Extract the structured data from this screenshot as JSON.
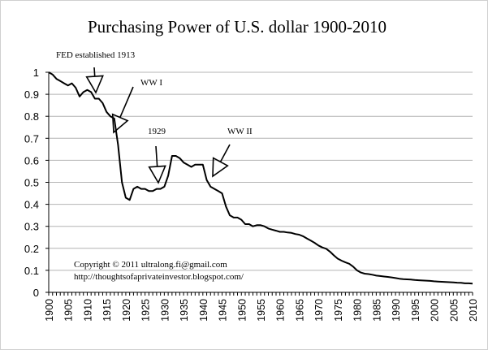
{
  "chart_data": {
    "type": "line",
    "title": "Purchasing Power of U.S. dollar 1900-2010",
    "xlabel": "",
    "ylabel": "",
    "xlim": [
      1900,
      2010
    ],
    "ylim": [
      0,
      1
    ],
    "grid": true,
    "yticks": [
      "0",
      "0.1",
      "0.2",
      "0.3",
      "0.4",
      "0.5",
      "0.6",
      "0.7",
      "0.8",
      "0.9",
      "1"
    ],
    "xticks": [
      "1900",
      "1905",
      "1910",
      "1915",
      "1920",
      "1925",
      "1930",
      "1935",
      "1940",
      "1945",
      "1950",
      "1955",
      "1960",
      "1965",
      "1970",
      "1975",
      "1980",
      "1985",
      "1990",
      "1995",
      "2000",
      "2005",
      "2010"
    ],
    "series": [
      {
        "name": "Purchasing Power of U.S. dollar",
        "x": [
          1900,
          1901,
          1902,
          1903,
          1904,
          1905,
          1906,
          1907,
          1908,
          1909,
          1910,
          1911,
          1912,
          1913,
          1914,
          1915,
          1916,
          1917,
          1918,
          1919,
          1920,
          1921,
          1922,
          1923,
          1924,
          1925,
          1926,
          1927,
          1928,
          1929,
          1930,
          1931,
          1932,
          1933,
          1934,
          1935,
          1936,
          1937,
          1938,
          1939,
          1940,
          1941,
          1942,
          1943,
          1944,
          1945,
          1946,
          1947,
          1948,
          1949,
          1950,
          1951,
          1952,
          1953,
          1954,
          1955,
          1956,
          1957,
          1958,
          1959,
          1960,
          1961,
          1962,
          1963,
          1964,
          1965,
          1966,
          1967,
          1968,
          1969,
          1970,
          1971,
          1972,
          1973,
          1974,
          1975,
          1976,
          1977,
          1978,
          1979,
          1980,
          1981,
          1982,
          1983,
          1984,
          1985,
          1986,
          1987,
          1988,
          1989,
          1990,
          1991,
          1992,
          1993,
          1994,
          1995,
          1996,
          1997,
          1998,
          1999,
          2000,
          2001,
          2002,
          2003,
          2004,
          2005,
          2006,
          2007,
          2008,
          2009,
          2010
        ],
        "values": [
          1.0,
          0.99,
          0.97,
          0.96,
          0.95,
          0.94,
          0.95,
          0.93,
          0.89,
          0.91,
          0.92,
          0.91,
          0.88,
          0.88,
          0.86,
          0.82,
          0.8,
          0.79,
          0.67,
          0.5,
          0.43,
          0.42,
          0.47,
          0.48,
          0.47,
          0.47,
          0.46,
          0.46,
          0.47,
          0.47,
          0.48,
          0.53,
          0.62,
          0.62,
          0.61,
          0.59,
          0.58,
          0.57,
          0.58,
          0.58,
          0.58,
          0.51,
          0.48,
          0.47,
          0.46,
          0.45,
          0.39,
          0.35,
          0.34,
          0.34,
          0.33,
          0.31,
          0.31,
          0.3,
          0.305,
          0.305,
          0.3,
          0.29,
          0.285,
          0.28,
          0.275,
          0.275,
          0.272,
          0.27,
          0.265,
          0.262,
          0.255,
          0.245,
          0.235,
          0.225,
          0.213,
          0.204,
          0.198,
          0.185,
          0.168,
          0.153,
          0.144,
          0.136,
          0.13,
          0.117,
          0.1,
          0.09,
          0.085,
          0.083,
          0.08,
          0.076,
          0.074,
          0.072,
          0.07,
          0.068,
          0.065,
          0.062,
          0.06,
          0.059,
          0.058,
          0.056,
          0.055,
          0.054,
          0.053,
          0.052,
          0.05,
          0.049,
          0.048,
          0.047,
          0.046,
          0.045,
          0.044,
          0.043,
          0.041,
          0.041,
          0.04
        ]
      }
    ],
    "annotations": [
      {
        "label": "FED established 1913",
        "year": 1913,
        "value": 0.88
      },
      {
        "label": "WW I",
        "year": 1917,
        "value": 0.72
      },
      {
        "label": "1929",
        "year": 1929,
        "value": 0.5
      },
      {
        "label": "WW II",
        "year": 1943,
        "value": 0.52
      }
    ],
    "copyright": "Copyright © 2011 ultralong.fi@gmail.com",
    "website": "http://thoughtsofaprivateinvestor.blogspot.com/"
  }
}
